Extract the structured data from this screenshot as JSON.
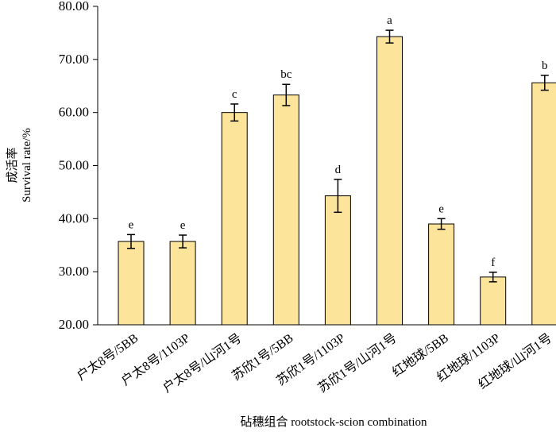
{
  "chart_data": {
    "type": "bar",
    "y_label_lines": [
      "成活率",
      "Survival rate/%"
    ],
    "x_label": "砧穗组合 rootstock-scion combination",
    "categories": [
      "户太8号/5BB",
      "户太8号/1103P",
      "户太8号/山河1号",
      "苏欣1号/5BB",
      "苏欣1号/1103P",
      "苏欣1号/山河1号",
      "红地球/5BB",
      "红地球/1103P",
      "红地球/山河1号"
    ],
    "values": [
      35.7,
      35.7,
      60.0,
      63.3,
      44.3,
      74.3,
      39.0,
      29.0,
      65.6
    ],
    "errors": [
      1.3,
      1.2,
      1.6,
      2.0,
      3.1,
      1.2,
      1.0,
      0.9,
      1.4
    ],
    "significance": [
      "e",
      "e",
      "c",
      "bc",
      "d",
      "a",
      "e",
      "f",
      "b"
    ],
    "color": "#fde49b",
    "ylim": [
      20,
      80
    ],
    "yticks": [
      {
        "value": 20,
        "label": "20.00"
      },
      {
        "value": 30,
        "label": "30.00"
      },
      {
        "value": 40,
        "label": "40.00"
      },
      {
        "value": 50,
        "label": "50.00"
      },
      {
        "value": 60,
        "label": "60.00"
      },
      {
        "value": 70,
        "label": "70.00"
      },
      {
        "value": 80,
        "label": "80.00"
      }
    ]
  }
}
